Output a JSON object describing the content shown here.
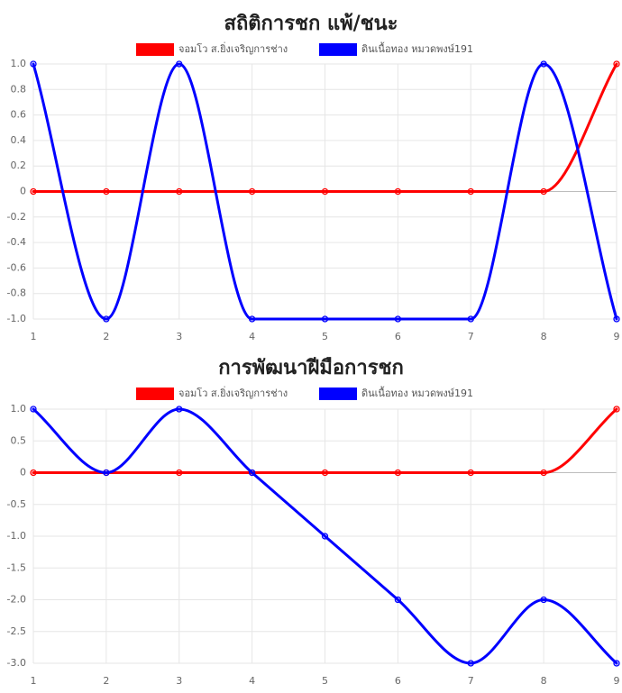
{
  "colors": {
    "red": "#ff0000",
    "blue": "#0000ff"
  },
  "chart_data": [
    {
      "type": "line",
      "title": "สถิติการชก แพ้/ชนะ",
      "x": [
        1,
        2,
        3,
        4,
        5,
        6,
        7,
        8,
        9
      ],
      "xlabel": "",
      "ylabel": "",
      "ylim": [
        -1.0,
        1.0
      ],
      "yticks": [
        1.0,
        0.8,
        0.6,
        0.4,
        0.2,
        0,
        -0.2,
        -0.4,
        -0.6,
        -0.8,
        -1.0
      ],
      "ytick_labels": [
        "1.0",
        "0.8",
        "0.6",
        "0.4",
        "0.2",
        "0",
        "-0.2",
        "-0.4",
        "-0.6",
        "-0.8",
        "-1.0"
      ],
      "grid": true,
      "legend": "top-center",
      "series": [
        {
          "name": "จอมโว ส.ยิ่งเจริญการช่าง",
          "color": "#ff0000",
          "values": [
            0,
            0,
            0,
            0,
            0,
            0,
            0,
            0,
            1
          ]
        },
        {
          "name": "ดินเนื้อทอง หมวดพงษ์191",
          "color": "#0000ff",
          "values": [
            1,
            -1,
            1,
            -1,
            -1,
            -1,
            -1,
            1,
            -1
          ]
        }
      ]
    },
    {
      "type": "line",
      "title": "การพัฒนาฝีมือการชก",
      "x": [
        1,
        2,
        3,
        4,
        5,
        6,
        7,
        8,
        9
      ],
      "xlabel": "",
      "ylabel": "",
      "ylim": [
        -3.0,
        1.0
      ],
      "yticks": [
        1.0,
        0.5,
        0,
        -0.5,
        -1.0,
        -1.5,
        -2.0,
        -2.5,
        -3.0
      ],
      "ytick_labels": [
        "1.0",
        "0.5",
        "0",
        "-0.5",
        "-1.0",
        "-1.5",
        "-2.0",
        "-2.5",
        "-3.0"
      ],
      "grid": true,
      "legend": "top-center",
      "series": [
        {
          "name": "จอมโว ส.ยิ่งเจริญการช่าง",
          "color": "#ff0000",
          "values": [
            0,
            0,
            0,
            0,
            0,
            0,
            0,
            0,
            1
          ]
        },
        {
          "name": "ดินเนื้อทอง หมวดพงษ์191",
          "color": "#0000ff",
          "values": [
            1,
            0,
            1,
            0,
            -1,
            -2,
            -3,
            -2,
            -3
          ]
        }
      ]
    }
  ]
}
